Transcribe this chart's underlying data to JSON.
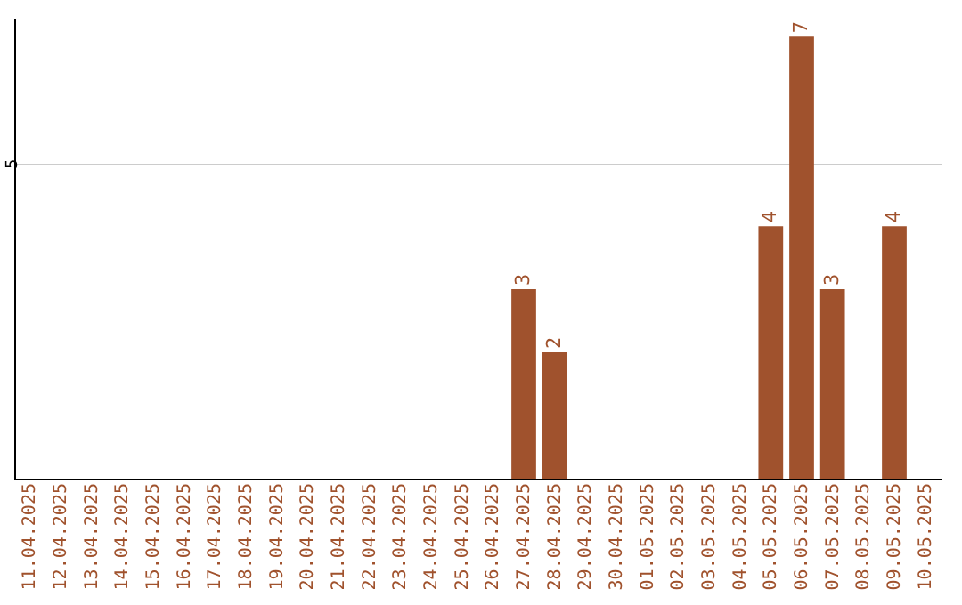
{
  "chart_data": {
    "type": "bar",
    "categories": [
      "11.04.2025",
      "12.04.2025",
      "13.04.2025",
      "14.04.2025",
      "15.04.2025",
      "16.04.2025",
      "17.04.2025",
      "18.04.2025",
      "19.04.2025",
      "20.04.2025",
      "21.04.2025",
      "22.04.2025",
      "23.04.2025",
      "24.04.2025",
      "25.04.2025",
      "26.04.2025",
      "27.04.2025",
      "28.04.2025",
      "29.04.2025",
      "30.04.2025",
      "01.05.2025",
      "02.05.2025",
      "03.05.2025",
      "04.05.2025",
      "05.05.2025",
      "06.05.2025",
      "07.05.2025",
      "08.05.2025",
      "09.05.2025",
      "10.05.2025"
    ],
    "values": [
      null,
      null,
      null,
      null,
      null,
      null,
      null,
      null,
      null,
      null,
      null,
      null,
      null,
      null,
      null,
      null,
      3,
      2,
      null,
      null,
      null,
      null,
      null,
      null,
      4,
      7,
      3,
      null,
      4,
      null
    ],
    "color": "#a0522d",
    "ylim": [
      0,
      7.3
    ],
    "yticks": [
      5
    ],
    "grid": "y",
    "data_labels": true
  }
}
